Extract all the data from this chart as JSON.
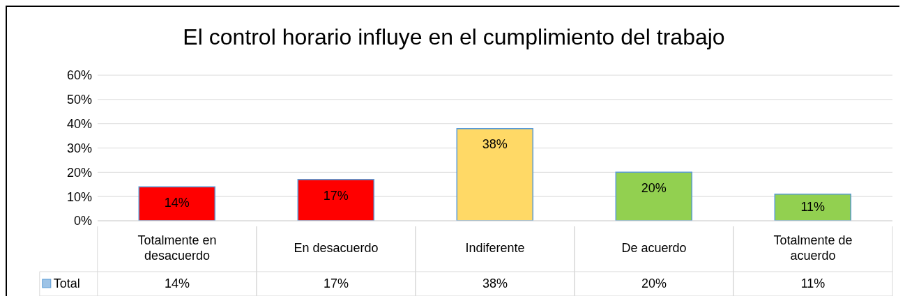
{
  "chart_data": {
    "type": "bar",
    "title": "El control horario influye en el cumplimiento del trabajo",
    "categories": [
      "Totalmente en desacuerdo",
      "En desacuerdo",
      "Indiferente",
      "De acuerdo",
      "Totalmente de acuerdo"
    ],
    "series": [
      {
        "name": "Total",
        "values": [
          14,
          17,
          38,
          20,
          11
        ],
        "colors": [
          "#ff0000",
          "#ff0000",
          "#ffd966",
          "#92d050",
          "#92d050"
        ],
        "value_labels": [
          "14%",
          "17%",
          "38%",
          "20%",
          "11%"
        ]
      }
    ],
    "ylim": [
      0,
      60
    ],
    "yticks": [
      {
        "value": 0,
        "label": "0%"
      },
      {
        "value": 10,
        "label": "10%"
      },
      {
        "value": 20,
        "label": "20%"
      },
      {
        "value": 30,
        "label": "30%"
      },
      {
        "value": 40,
        "label": "40%"
      },
      {
        "value": 50,
        "label": "50%"
      },
      {
        "value": 60,
        "label": "60%"
      }
    ],
    "grid": "y",
    "legend": "bottom"
  }
}
